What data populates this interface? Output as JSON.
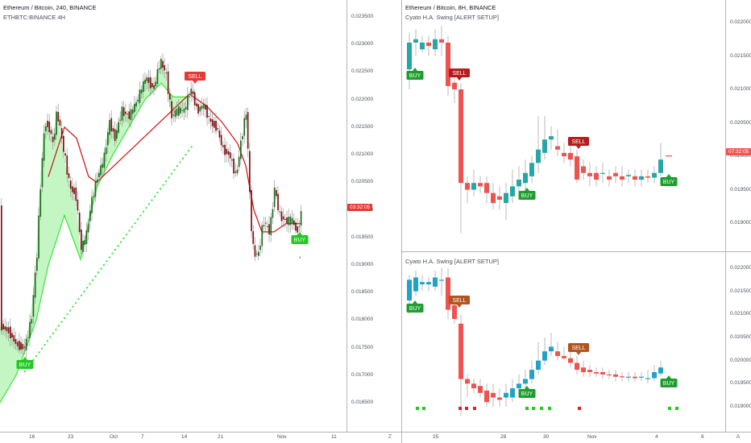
{
  "left_chart": {
    "title": "Ethereum / Bitcoin, 240, BINANCE",
    "subtitle": "ETHBTC:BINANCE 4H",
    "price_axis": [
      "0.023500",
      "0.023000",
      "0.022500",
      "0.022000",
      "0.021500",
      "0.021000",
      "0.020500",
      "0.020000",
      "0.019500",
      "0.019000",
      "0.018500",
      "0.018000",
      "0.017500",
      "0.017000",
      "0.016500"
    ],
    "time_axis": [
      "16",
      "23",
      "Oct",
      "7",
      "14",
      "21",
      "Nov",
      "11"
    ],
    "current_price_tag": "03:32:05",
    "signals": {
      "sell": "SELL",
      "buy_right": "BUY",
      "buy_left": "BUY"
    },
    "colors": {
      "up": "#1e6b1e",
      "down": "#7a1010",
      "fill": "#b8f5b8",
      "trail": "#39e639",
      "curve_red": "#d21c1c",
      "tag": "#e53935"
    }
  },
  "right_top": {
    "title": "Ethereum / Bitcoin, 8H, BINANCE",
    "subtitle": "Cyato H.A. Swing [ALERT SETUP]",
    "price_axis": [
      "0.022000",
      "0.021500",
      "0.021000",
      "0.020500",
      "0.020000",
      "0.019500",
      "0.019000"
    ],
    "current_price_tag": "07:32:05",
    "signals": {
      "buy1": "BUY",
      "sell1": "SELL",
      "buy2": "BUY",
      "sell2": "SELL",
      "buy3": "BUY"
    },
    "colors": {
      "up": "#26a6a6",
      "down": "#ef5350"
    }
  },
  "right_bottom": {
    "title": "Cyato H.A. Swing [ALERT SETUP]",
    "price_axis": [
      "0.022000",
      "0.021500",
      "0.021000",
      "0.020500",
      "0.020000",
      "0.019500",
      "0.019000"
    ],
    "signals": {
      "buy1": "BUY",
      "sell1": "SELL",
      "buy2": "BUY",
      "sell2": "SELL",
      "buy3": "BUY"
    },
    "colors": {
      "up": "#1fa4c8",
      "down": "#ef5350",
      "marker_green": "#22c922",
      "marker_red": "#e02020"
    }
  },
  "right_time_axis": [
    "25",
    "28",
    "30",
    "Nov",
    "4",
    "6"
  ],
  "corner_left": "Z",
  "corner_right": "A"
}
